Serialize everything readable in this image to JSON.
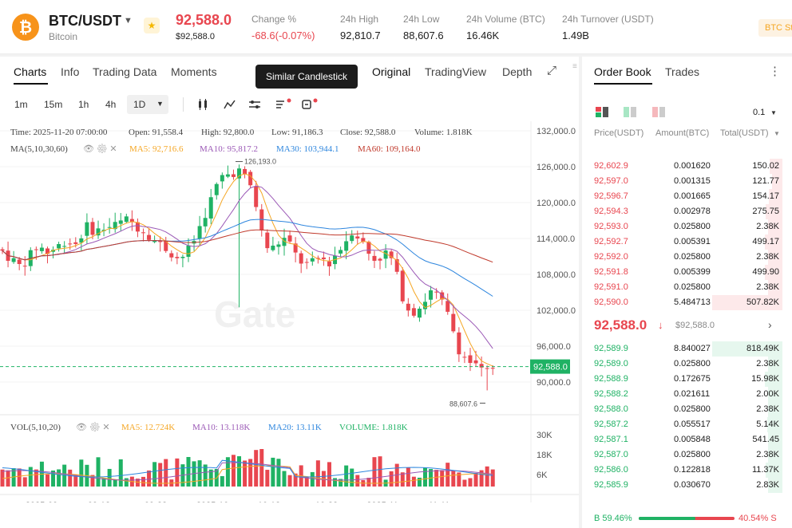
{
  "header": {
    "coin_icon": "bitcoin-icon",
    "pair": "BTC/USDT",
    "coin_name": "Bitcoin",
    "last_price": "92,588.0",
    "last_price_usd": "$92,588.0",
    "stats": [
      {
        "label": "Change %",
        "value": "-68.6(-0.07%)"
      },
      {
        "label": "24h High",
        "value": "92,810.7"
      },
      {
        "label": "24h Low",
        "value": "88,607.6"
      },
      {
        "label": "24h Volume (BTC)",
        "value": "16.46K"
      },
      {
        "label": "24h Turnover (USDT)",
        "value": "1.49B"
      }
    ],
    "badge": "BTC St"
  },
  "tabs": {
    "left": [
      "Charts",
      "Info",
      "Trading Data",
      "Moments"
    ],
    "right": [
      "Original",
      "TradingView",
      "Depth"
    ]
  },
  "tooltip": "Similar Candlestick",
  "timeframes": [
    "1m",
    "15m",
    "1h",
    "4h",
    "1D"
  ],
  "ohlc": {
    "time": "Time: 2025-11-20 07:00:00",
    "open": "Open: 91,558.4",
    "high": "High: 92,800.0",
    "low": "Low: 91,186.3",
    "close": "Close: 92,588.0",
    "volume": "Volume: 1.818K"
  },
  "ma": {
    "label": "MA(5,10,30,60)",
    "ma5": "MA5: 92,716.6",
    "ma10": "MA10: 95,817.2",
    "ma30": "MA30: 103,944.1",
    "ma60": "MA60: 109,164.0"
  },
  "vol": {
    "label": "VOL(5,10,20)",
    "ma5": "MA5: 12.724K",
    "ma10": "MA10: 13.118K",
    "ma20": "MA20: 13.11K",
    "volume": "VOLUME: 1.818K"
  },
  "watermark": "Gate",
  "colors": {
    "up": "#1fb264",
    "down": "#e8464f",
    "ma5": "#f5a623",
    "ma10": "#9b59b6",
    "ma30": "#2e86de",
    "ma60": "#c0392b"
  },
  "chart_data": {
    "type": "candlestick",
    "y_ticks": [
      "132,000.0",
      "126,000.0",
      "120,000.0",
      "114,000.0",
      "108,000.0",
      "102,000.0",
      "96,000.0",
      "90,000.0"
    ],
    "ylim": [
      86000,
      133500
    ],
    "x_ticks": [
      "2025-09",
      "09-12",
      "09-22",
      "2025-10",
      "10-12",
      "10-22",
      "2025-11",
      "11-11"
    ],
    "current_price_label": "92,588.0",
    "max_label": "126,193.0",
    "min_label": "88,607.6",
    "vol_ticks": [
      "30K",
      "18K",
      "6K"
    ],
    "vol_ylim": [
      0,
      36
    ]
  },
  "orderbook": {
    "tabs": [
      "Order Book",
      "Trades"
    ],
    "precision": "0.1",
    "headers": [
      "Price(USDT)",
      "Amount(BTC)",
      "Total(USDT)"
    ],
    "asks": [
      [
        "92,602.9",
        "0.001620",
        "150.02"
      ],
      [
        "92,597.0",
        "0.001315",
        "121.77"
      ],
      [
        "92,596.7",
        "0.001665",
        "154.17"
      ],
      [
        "92,594.3",
        "0.002978",
        "275.75"
      ],
      [
        "92,593.0",
        "0.025800",
        "2.38K"
      ],
      [
        "92,592.7",
        "0.005391",
        "499.17"
      ],
      [
        "92,592.0",
        "0.025800",
        "2.38K"
      ],
      [
        "92,591.8",
        "0.005399",
        "499.90"
      ],
      [
        "92,591.0",
        "0.025800",
        "2.38K"
      ],
      [
        "92,590.0",
        "5.484713",
        "507.82K"
      ]
    ],
    "ask_fill": [
      0.18,
      0.15,
      0.19,
      0.24,
      0.2,
      0.25,
      0.2,
      0.25,
      0.2,
      1
    ],
    "mid_price": "92,588.0",
    "mid_usd": "$92,588.0",
    "bids": [
      [
        "92,589.9",
        "8.840027",
        "818.49K"
      ],
      [
        "92,589.0",
        "0.025800",
        "2.38K"
      ],
      [
        "92,588.9",
        "0.172675",
        "15.98K"
      ],
      [
        "92,588.2",
        "0.021611",
        "2.00K"
      ],
      [
        "92,588.0",
        "0.025800",
        "2.38K"
      ],
      [
        "92,587.2",
        "0.055517",
        "5.14K"
      ],
      [
        "92,587.1",
        "0.005848",
        "541.45"
      ],
      [
        "92,587.0",
        "0.025800",
        "2.38K"
      ],
      [
        "92,586.0",
        "0.122818",
        "11.37K"
      ],
      [
        "92,585.9",
        "0.030670",
        "2.83K"
      ]
    ],
    "bid_fill": [
      1,
      0.2,
      0.25,
      0.2,
      0.2,
      0.22,
      0.2,
      0.2,
      0.24,
      0.2
    ],
    "buy_ratio": "B 59.46%",
    "sell_ratio": "40.54% S",
    "buy_fraction": 0.5946
  }
}
